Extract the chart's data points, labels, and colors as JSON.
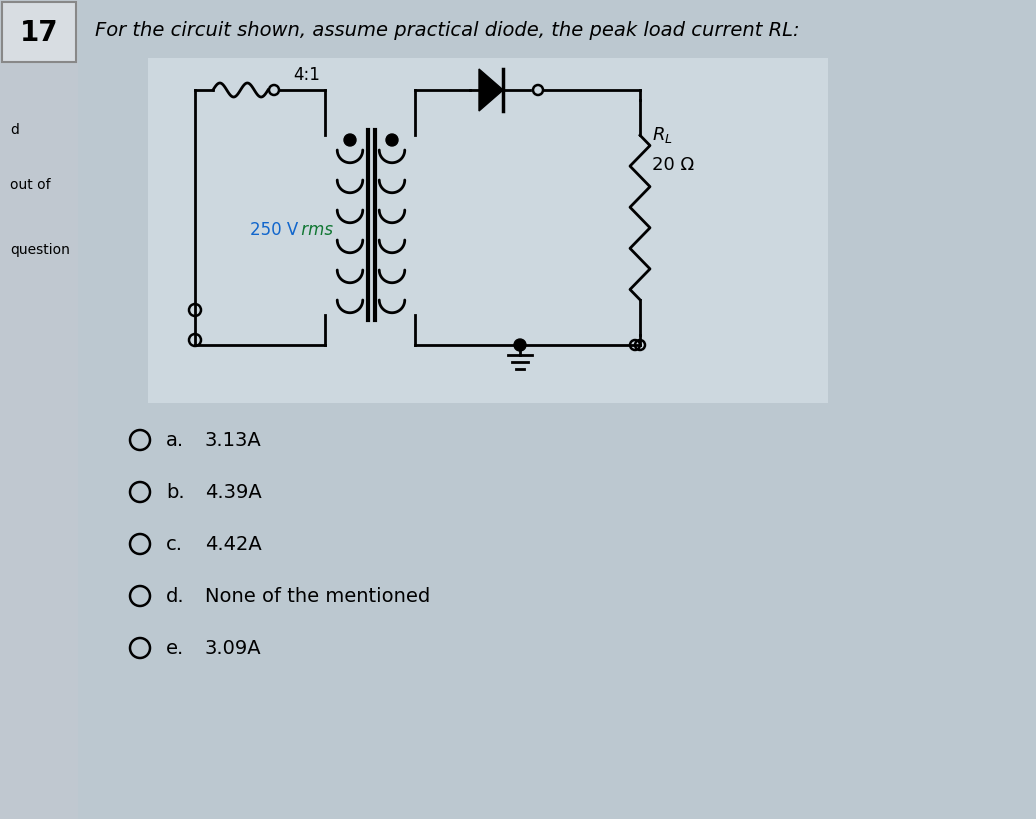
{
  "title": "For the circuit shown, assume practical diode, the peak load current RL:",
  "question_number": "17",
  "side_labels": [
    "d",
    "out of",
    "question"
  ],
  "bg_color": "#c8d0d8",
  "sidebar_bg": "#c0c8d0",
  "num_box_bg": "#d8dde2",
  "main_bg": "#bcc8d0",
  "circuit_bg": "#cdd8df",
  "answer_choices": [
    {
      "label": "a.",
      "text": "3.13A"
    },
    {
      "label": "b.",
      "text": "4.39A"
    },
    {
      "label": "c.",
      "text": "4.42A"
    },
    {
      "label": "d.",
      "text": "None of the mentioned"
    },
    {
      "label": "e.",
      "text": "3.09A"
    }
  ],
  "circuit_voltage": "250 V",
  "circuit_voltage_unit": "rms",
  "circuit_ratio": "4:1",
  "circuit_rl_label": "R_L",
  "circuit_rl_value": "20 Ω",
  "title_fontsize": 14,
  "answer_fontsize": 14
}
